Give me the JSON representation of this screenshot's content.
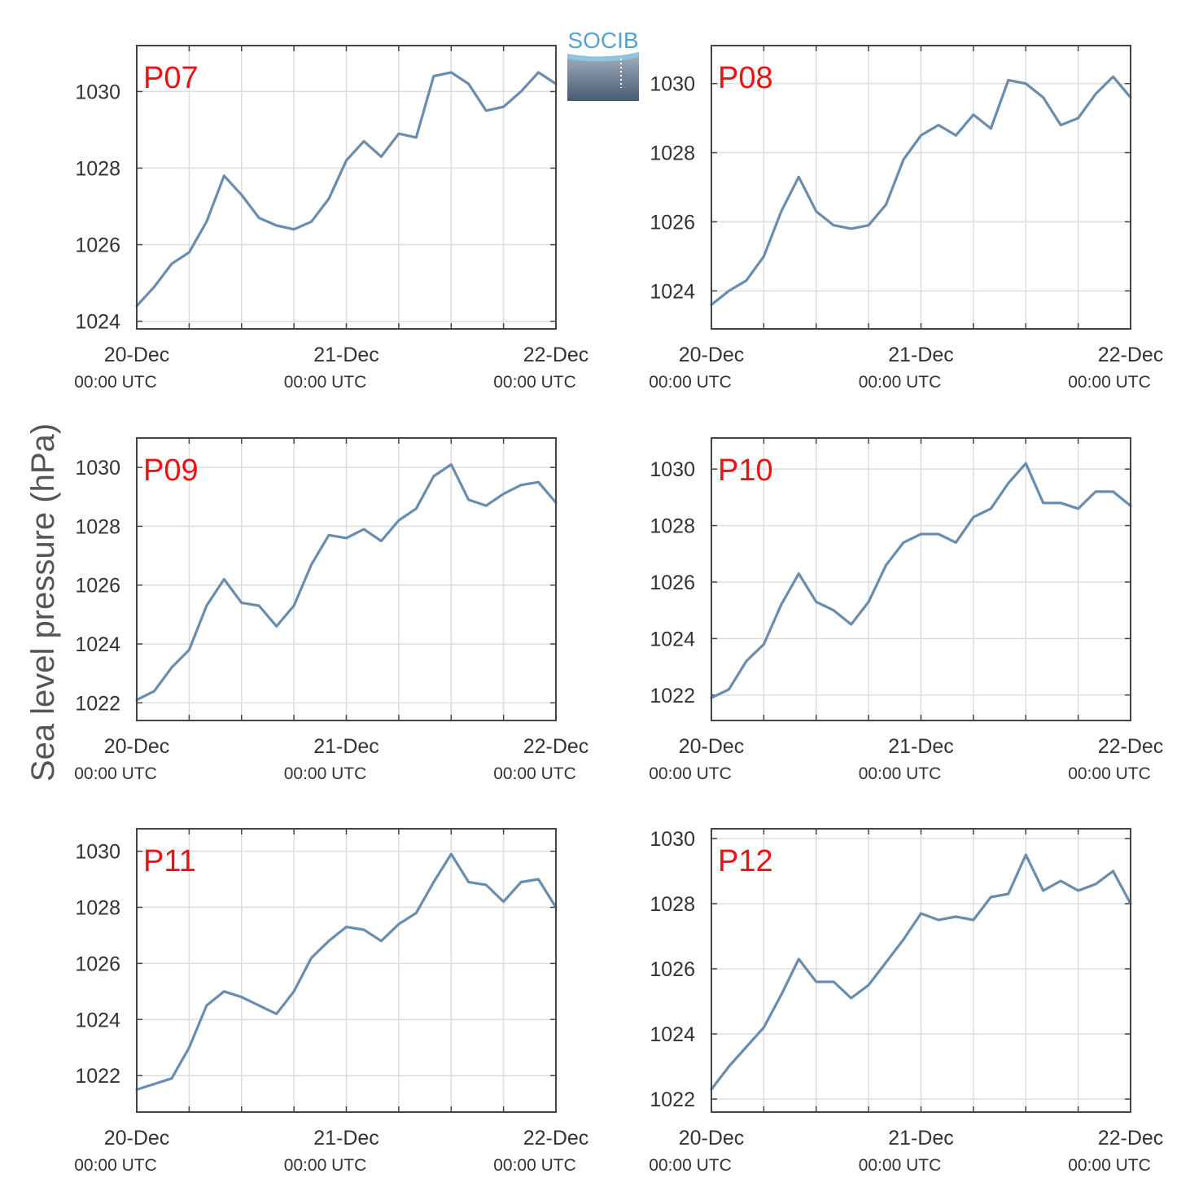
{
  "figure": {
    "ylabel": "Sea level pressure (hPa)",
    "logo_text": "SOCIB",
    "line_color": "#6a8cad",
    "label_color": "#ee1111",
    "grid_color": "#dddddd",
    "axis_color": "#444444"
  },
  "chart_data": [
    {
      "type": "line",
      "label": "P07",
      "x": [
        0,
        2,
        4,
        6,
        8,
        10,
        12,
        14,
        16,
        18,
        20,
        22,
        24,
        26,
        28,
        30,
        32,
        34,
        36,
        38,
        40,
        42,
        44,
        46,
        48
      ],
      "x_ticks": {
        "positions": [
          0,
          24,
          48
        ],
        "labels": [
          "20-Dec",
          "21-Dec",
          "22-Dec"
        ],
        "sublabels": [
          "00:00 UTC",
          "00:00 UTC",
          "00:00 UTC"
        ]
      },
      "y": [
        1024.4,
        1024.9,
        1025.5,
        1025.8,
        1026.6,
        1027.8,
        1027.3,
        1026.7,
        1026.5,
        1026.4,
        1026.6,
        1027.2,
        1028.2,
        1028.7,
        1028.3,
        1028.9,
        1028.8,
        1030.4,
        1030.5,
        1030.2,
        1029.5,
        1029.6,
        1030.0,
        1030.5,
        1030.2
      ],
      "yticks": [
        1024,
        1026,
        1028,
        1030
      ],
      "ylim": [
        1023.8,
        1031.2
      ],
      "xlim": [
        0,
        48
      ],
      "grid": true
    },
    {
      "type": "line",
      "label": "P08",
      "x": [
        0,
        2,
        4,
        6,
        8,
        10,
        12,
        14,
        16,
        18,
        20,
        22,
        24,
        26,
        28,
        30,
        32,
        34,
        36,
        38,
        40,
        42,
        44,
        46,
        48
      ],
      "x_ticks": {
        "positions": [
          0,
          24,
          48
        ],
        "labels": [
          "20-Dec",
          "21-Dec",
          "22-Dec"
        ],
        "sublabels": [
          "00:00 UTC",
          "00:00 UTC",
          "00:00 UTC"
        ]
      },
      "y": [
        1023.6,
        1024.0,
        1024.3,
        1025.0,
        1026.3,
        1027.3,
        1026.3,
        1025.9,
        1025.8,
        1025.9,
        1026.5,
        1027.8,
        1028.5,
        1028.8,
        1028.5,
        1029.1,
        1028.7,
        1030.1,
        1030.0,
        1029.6,
        1028.8,
        1029.0,
        1029.7,
        1030.2,
        1029.6
      ],
      "yticks": [
        1024,
        1026,
        1028,
        1030
      ],
      "ylim": [
        1022.9,
        1031.1
      ],
      "xlim": [
        0,
        48
      ],
      "grid": true
    },
    {
      "type": "line",
      "label": "P09",
      "x": [
        0,
        2,
        4,
        6,
        8,
        10,
        12,
        14,
        16,
        18,
        20,
        22,
        24,
        26,
        28,
        30,
        32,
        34,
        36,
        38,
        40,
        42,
        44,
        46,
        48
      ],
      "x_ticks": {
        "positions": [
          0,
          24,
          48
        ],
        "labels": [
          "20-Dec",
          "21-Dec",
          "22-Dec"
        ],
        "sublabels": [
          "00:00 UTC",
          "00:00 UTC",
          "00:00 UTC"
        ]
      },
      "y": [
        1022.1,
        1022.4,
        1023.2,
        1023.8,
        1025.3,
        1026.2,
        1025.4,
        1025.3,
        1024.6,
        1025.3,
        1026.7,
        1027.7,
        1027.6,
        1027.9,
        1027.5,
        1028.2,
        1028.6,
        1029.7,
        1030.1,
        1028.9,
        1028.7,
        1029.1,
        1029.4,
        1029.5,
        1028.8
      ],
      "yticks": [
        1022,
        1024,
        1026,
        1028,
        1030
      ],
      "ylim": [
        1021.4,
        1031.0
      ],
      "xlim": [
        0,
        48
      ],
      "grid": true
    },
    {
      "type": "line",
      "label": "P10",
      "x": [
        0,
        2,
        4,
        6,
        8,
        10,
        12,
        14,
        16,
        18,
        20,
        22,
        24,
        26,
        28,
        30,
        32,
        34,
        36,
        38,
        40,
        42,
        44,
        46,
        48
      ],
      "x_ticks": {
        "positions": [
          0,
          24,
          48
        ],
        "labels": [
          "20-Dec",
          "21-Dec",
          "22-Dec"
        ],
        "sublabels": [
          "00:00 UTC",
          "00:00 UTC",
          "00:00 UTC"
        ]
      },
      "y": [
        1021.9,
        1022.2,
        1023.2,
        1023.8,
        1025.2,
        1026.3,
        1025.3,
        1025.0,
        1024.5,
        1025.3,
        1026.6,
        1027.4,
        1027.7,
        1027.7,
        1027.4,
        1028.3,
        1028.6,
        1029.5,
        1030.2,
        1028.8,
        1028.8,
        1028.6,
        1029.2,
        1029.2,
        1028.7
      ],
      "yticks": [
        1022,
        1024,
        1026,
        1028,
        1030
      ],
      "ylim": [
        1021.1,
        1031.1
      ],
      "xlim": [
        0,
        48
      ],
      "grid": true
    },
    {
      "type": "line",
      "label": "P11",
      "x": [
        0,
        2,
        4,
        6,
        8,
        10,
        12,
        14,
        16,
        18,
        20,
        22,
        24,
        26,
        28,
        30,
        32,
        34,
        36,
        38,
        40,
        42,
        44,
        46,
        48
      ],
      "x_ticks": {
        "positions": [
          0,
          24,
          48
        ],
        "labels": [
          "20-Dec",
          "21-Dec",
          "22-Dec"
        ],
        "sublabels": [
          "00:00 UTC",
          "00:00 UTC",
          "00:00 UTC"
        ]
      },
      "y": [
        1021.5,
        1021.7,
        1021.9,
        1023.0,
        1024.5,
        1025.0,
        1024.8,
        1024.5,
        1024.2,
        1025.0,
        1026.2,
        1026.8,
        1027.3,
        1027.2,
        1026.8,
        1027.4,
        1027.8,
        1028.9,
        1029.9,
        1028.9,
        1028.8,
        1028.2,
        1028.9,
        1029.0,
        1028.0
      ],
      "yticks": [
        1022,
        1024,
        1026,
        1028,
        1030
      ],
      "ylim": [
        1020.7,
        1030.8
      ],
      "xlim": [
        0,
        48
      ],
      "grid": true
    },
    {
      "type": "line",
      "label": "P12",
      "x": [
        0,
        2,
        4,
        6,
        8,
        10,
        12,
        14,
        16,
        18,
        20,
        22,
        24,
        26,
        28,
        30,
        32,
        34,
        36,
        38,
        40,
        42,
        44,
        46,
        48
      ],
      "x_ticks": {
        "positions": [
          0,
          24,
          48
        ],
        "labels": [
          "20-Dec",
          "21-Dec",
          "22-Dec"
        ],
        "sublabels": [
          "00:00 UTC",
          "00:00 UTC",
          "00:00 UTC"
        ]
      },
      "y": [
        1022.3,
        1023.0,
        1023.6,
        1024.2,
        1025.2,
        1026.3,
        1025.6,
        1025.6,
        1025.1,
        1025.5,
        1026.2,
        1026.9,
        1027.7,
        1027.5,
        1027.6,
        1027.5,
        1028.2,
        1028.3,
        1029.5,
        1028.4,
        1028.7,
        1028.4,
        1028.6,
        1029.0,
        1028.0
      ],
      "yticks": [
        1022,
        1024,
        1026,
        1028,
        1030
      ],
      "ylim": [
        1021.6,
        1030.3
      ],
      "xlim": [
        0,
        48
      ],
      "grid": true
    }
  ]
}
